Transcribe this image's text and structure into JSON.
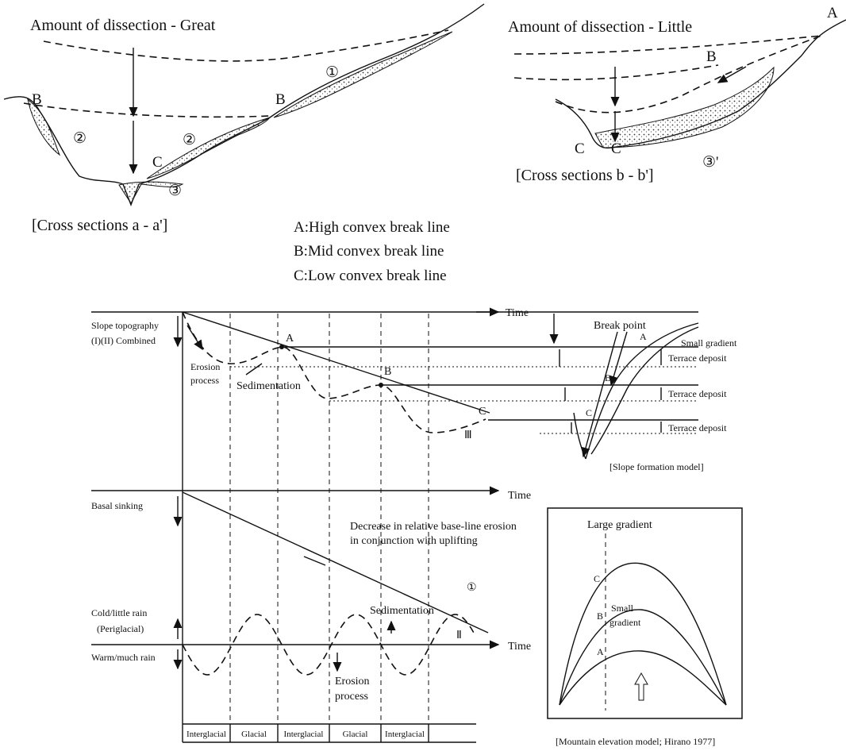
{
  "cross_section_great": {
    "title": "Amount of dissection - Great",
    "labels": [
      "B",
      "B",
      "C",
      "①",
      "②",
      "②",
      "③"
    ],
    "caption": "[Cross sections a - a']"
  },
  "cross_section_little": {
    "title": "Amount of dissection - Little",
    "labels": [
      "A",
      "B",
      "C",
      "C",
      "③'"
    ],
    "caption": "[Cross sections b - b']"
  },
  "legend": [
    "A:High convex break line",
    "B:Mid convex break line",
    "C:Low convex break line"
  ],
  "timeline": {
    "time_label": "Time",
    "slope_topography": [
      "Slope topography",
      "(I)(II) Combined"
    ],
    "erosion_process": [
      "Erosion",
      "process"
    ],
    "sedimentation": "Sedimentation",
    "break_labels": [
      "A",
      "B",
      "C"
    ],
    "curve_label_3": "Ⅲ",
    "basal_sinking": "Basal sinking",
    "decrease_note": [
      "Decrease in relative base-line erosion",
      "in conjunction with uplifting"
    ],
    "line_label_1": "①",
    "cold": [
      "Cold/little rain",
      "(Periglacial)"
    ],
    "sedimentation_2": "Sedimentation",
    "curve_label_2": "Ⅱ",
    "warm": "Warm/much rain",
    "erosion_process_2": [
      "Erosion",
      "process"
    ],
    "periods": [
      "Interglacial",
      "Glacial",
      "Interglacial",
      "Glacial",
      "Interglacial"
    ]
  },
  "slope_model": {
    "break_point": "Break point",
    "labels": [
      "A",
      "B",
      "C"
    ],
    "small_gradient": "Small gradient",
    "terrace_deposit": [
      "Terrace deposit",
      "Terrace deposit",
      "Terrace deposit"
    ],
    "caption": "[Slope formation model]"
  },
  "mountain_model": {
    "large_gradient": "Large gradient",
    "labels": [
      "C",
      "B",
      "A"
    ],
    "small_gradient": [
      "Small",
      "gradient"
    ],
    "caption": "[Mountain elevation model; Hirano 1977]"
  }
}
